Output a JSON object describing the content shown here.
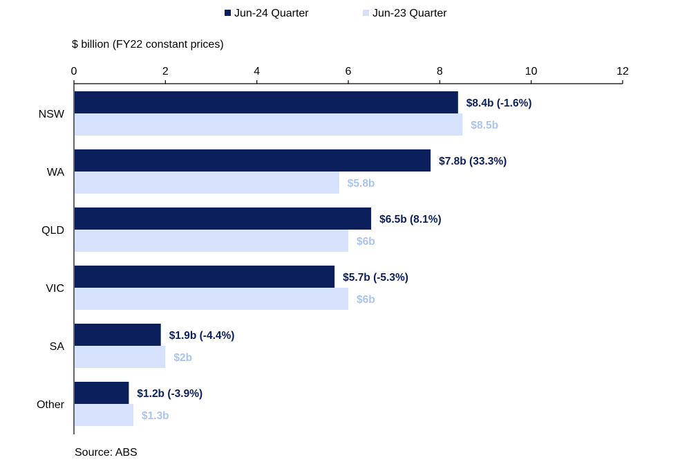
{
  "chart_data": {
    "type": "bar",
    "orientation": "horizontal",
    "unit_label": "$ billion (FY22 constant prices)",
    "categories": [
      "NSW",
      "WA",
      "QLD",
      "VIC",
      "SA",
      "Other"
    ],
    "series": [
      {
        "name": "Jun-24 Quarter",
        "color": "#0b1f5c",
        "label_color": "#0b1f5c",
        "values": [
          8.4,
          7.8,
          6.5,
          5.7,
          1.9,
          1.2
        ],
        "labels": [
          "$8.4b (-1.6%)",
          "$7.8b (33.3%)",
          "$6.5b (8.1%)",
          "$5.7b (-5.3%)",
          "$1.9b (-4.4%)",
          "$1.2b (-3.9%)"
        ]
      },
      {
        "name": "Jun-23 Quarter",
        "color": "#d6e2fb",
        "label_color": "#a9c4ef",
        "values": [
          8.5,
          5.8,
          6.0,
          6.0,
          2.0,
          1.3
        ],
        "labels": [
          "$8.5b",
          "$5.8b",
          "$6b",
          "$6b",
          "$2b",
          "$1.3b"
        ]
      }
    ],
    "xlim": [
      0,
      12
    ],
    "ticks": [
      "0",
      "2",
      "4",
      "6",
      "8",
      "10",
      "12"
    ],
    "legend_position": "top-center",
    "source": "Source: ABS"
  }
}
